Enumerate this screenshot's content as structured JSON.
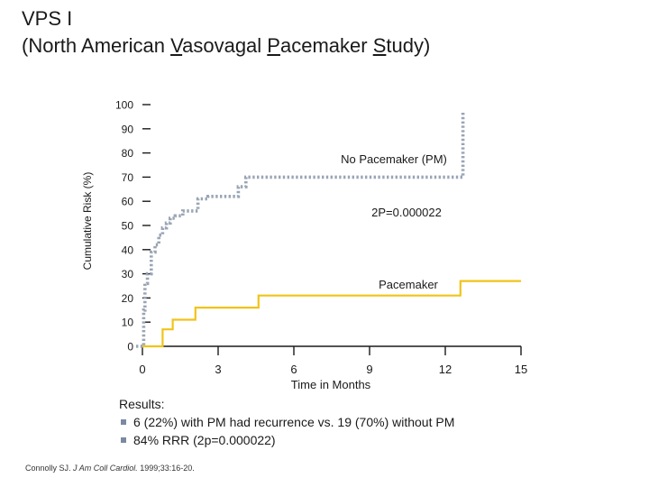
{
  "header": {
    "title_line1": "VPS I",
    "title_line2_parts": [
      {
        "text": "(North American ",
        "u": false
      },
      {
        "text": "V",
        "u": true
      },
      {
        "text": "asovagal ",
        "u": false
      },
      {
        "text": "P",
        "u": true
      },
      {
        "text": "acemaker ",
        "u": false
      },
      {
        "text": "S",
        "u": true
      },
      {
        "text": "tudy)",
        "u": false
      }
    ]
  },
  "chart_data": {
    "type": "line",
    "ylabel": "Cumulative Risk (%)",
    "xlabel": "Time in Months",
    "xlim": [
      0,
      15
    ],
    "ylim": [
      0,
      100
    ],
    "x_ticks": [
      "0",
      "3",
      "6",
      "9",
      "12",
      "15"
    ],
    "y_ticks": [
      "0",
      "10",
      "20",
      "30",
      "40",
      "50",
      "60",
      "70",
      "80",
      "90",
      "100"
    ],
    "annotations": {
      "no_pm_label": "No Pacemaker (PM)",
      "p_value": "2P=0.000022",
      "pm_label": "Pacemaker"
    },
    "series": [
      {
        "name": "No Pacemaker (PM)",
        "style": "dotted",
        "color": "#9aa5b5",
        "x": [
          -0.25,
          0.05,
          0.05,
          0.1,
          0.1,
          0.2,
          0.2,
          0.35,
          0.35,
          0.5,
          0.5,
          0.65,
          0.65,
          0.8,
          0.8,
          0.95,
          0.95,
          1.1,
          1.1,
          1.3,
          1.3,
          1.6,
          1.6,
          2.2,
          2.2,
          2.6,
          2.6,
          3.8,
          3.8,
          4.1,
          4.1,
          12.7,
          12.7
        ],
        "y": [
          0,
          0,
          15,
          15,
          26,
          26,
          30,
          30,
          39,
          39,
          42,
          42,
          46,
          46,
          49,
          49,
          51,
          51,
          53,
          53,
          54,
          54,
          56,
          56,
          61,
          61,
          62,
          62,
          66,
          66,
          70,
          70,
          97
        ]
      },
      {
        "name": "Pacemaker",
        "style": "solid",
        "color": "#f0c419",
        "x": [
          0,
          0.8,
          0.8,
          1.2,
          1.2,
          2.1,
          2.1,
          4.6,
          4.6,
          12.6,
          12.6,
          15.0
        ],
        "y": [
          0,
          0,
          7,
          7,
          11,
          11,
          16,
          16,
          21,
          21,
          27,
          27
        ]
      }
    ]
  },
  "results": {
    "heading": "Results:",
    "bullets": [
      "6 (22%) with PM had recurrence vs. 19 (70%) without PM",
      "84% RRR (2p=0.000022)"
    ]
  },
  "citation": {
    "authors": "Connolly SJ.",
    "journal": "J Am Coll Cardiol.",
    "details": "1999;33:16-20."
  },
  "colors": {
    "no_pacemaker": "#9aa5b5",
    "pacemaker": "#f0c419",
    "axis": "#1a1a1a",
    "bullet": "#7a8aa0"
  }
}
